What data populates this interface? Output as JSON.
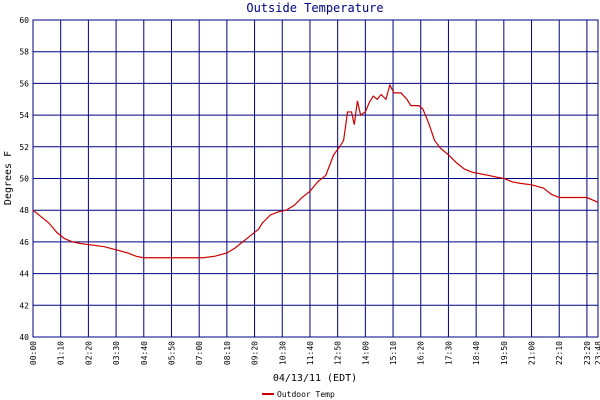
{
  "chart_data": {
    "type": "line",
    "title": "Outside Temperature",
    "x_label": "04/13/11 (EDT)",
    "y_label": "Degrees F",
    "x": [
      0,
      20,
      40,
      60,
      80,
      100,
      120,
      150,
      180,
      210,
      240,
      260,
      280,
      300,
      330,
      360,
      390,
      430,
      460,
      490,
      510,
      530,
      550,
      570,
      580,
      600,
      620,
      640,
      660,
      680,
      700,
      720,
      740,
      760,
      775,
      785,
      795,
      805,
      812,
      820,
      828,
      840,
      850,
      860,
      870,
      880,
      892,
      902,
      912,
      930,
      945,
      955,
      975,
      985,
      1000,
      1015,
      1030,
      1050,
      1070,
      1090,
      1110,
      1130,
      1150,
      1170,
      1190,
      1210,
      1230,
      1260,
      1290,
      1310,
      1330,
      1350,
      1380,
      1400,
      1428
    ],
    "series": [
      {
        "name": "Outdoor Temp",
        "color": "#cc0000",
        "values": [
          48.0,
          47.6,
          47.2,
          46.6,
          46.2,
          46.0,
          45.9,
          45.8,
          45.7,
          45.5,
          45.3,
          45.1,
          45.0,
          45.0,
          45.0,
          45.0,
          45.0,
          45.0,
          45.1,
          45.3,
          45.6,
          46.0,
          46.4,
          46.8,
          47.2,
          47.7,
          47.9,
          48.0,
          48.3,
          48.8,
          49.2,
          49.8,
          50.2,
          51.5,
          52.0,
          52.4,
          54.2,
          54.2,
          53.4,
          54.9,
          54.0,
          54.2,
          54.8,
          55.2,
          55.0,
          55.3,
          55.0,
          55.9,
          55.4,
          55.4,
          55.0,
          54.6,
          54.6,
          54.4,
          53.5,
          52.4,
          51.9,
          51.5,
          51.0,
          50.6,
          50.4,
          50.3,
          50.2,
          50.1,
          50.0,
          49.8,
          49.7,
          49.6,
          49.4,
          49.0,
          48.8,
          48.8,
          48.8,
          48.8,
          48.5
        ]
      }
    ],
    "xlim": [
      0,
      1428
    ],
    "xticks": [
      {
        "value": 0,
        "label": "00:00"
      },
      {
        "value": 70,
        "label": "01:10"
      },
      {
        "value": 140,
        "label": "02:20"
      },
      {
        "value": 210,
        "label": "03:30"
      },
      {
        "value": 280,
        "label": "04:40"
      },
      {
        "value": 350,
        "label": "05:50"
      },
      {
        "value": 420,
        "label": "07:00"
      },
      {
        "value": 490,
        "label": "08:10"
      },
      {
        "value": 560,
        "label": "09:20"
      },
      {
        "value": 630,
        "label": "10:30"
      },
      {
        "value": 700,
        "label": "11:40"
      },
      {
        "value": 770,
        "label": "12:50"
      },
      {
        "value": 840,
        "label": "14:00"
      },
      {
        "value": 910,
        "label": "15:10"
      },
      {
        "value": 980,
        "label": "16:20"
      },
      {
        "value": 1050,
        "label": "17:30"
      },
      {
        "value": 1120,
        "label": "18:40"
      },
      {
        "value": 1190,
        "label": "19:50"
      },
      {
        "value": 1260,
        "label": "21:00"
      },
      {
        "value": 1330,
        "label": "22:10"
      },
      {
        "value": 1400,
        "label": "23:20"
      },
      {
        "value": 1428,
        "label": "23:48"
      }
    ],
    "ylim": [
      40,
      60
    ],
    "yticks": [
      40,
      42,
      44,
      46,
      48,
      50,
      52,
      54,
      56,
      58,
      60
    ],
    "grid": true
  }
}
